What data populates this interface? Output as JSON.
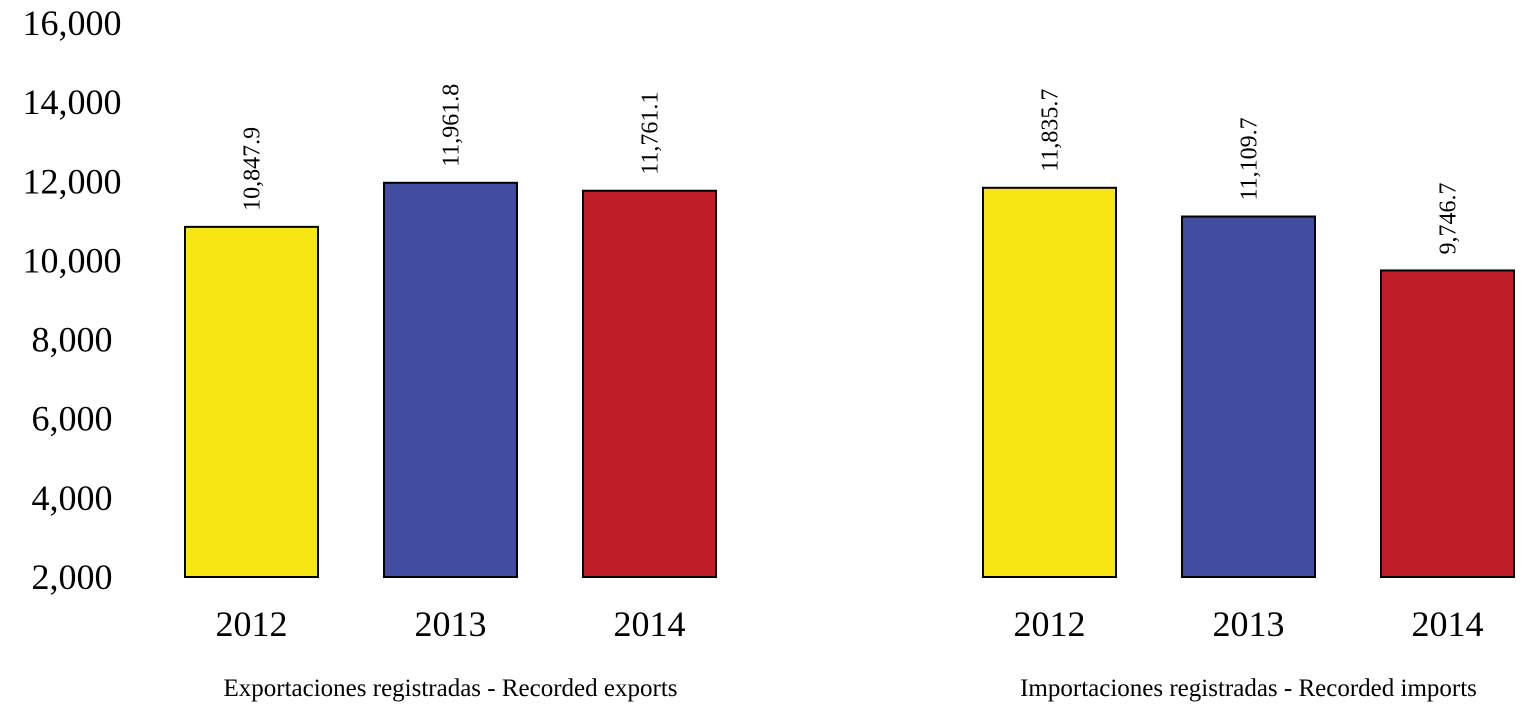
{
  "chart_data": {
    "type": "bar",
    "ylim": [
      2000,
      16000
    ],
    "yticks": [
      "2,000",
      "4,000",
      "6,000",
      "8,000",
      "10,000",
      "12,000",
      "14,000",
      "16,000"
    ],
    "ytick_values": [
      2000,
      4000,
      6000,
      8000,
      10000,
      12000,
      14000,
      16000
    ],
    "grid": false,
    "colors": {
      "2012": "#f5e614",
      "2013": "#434d9f",
      "2014": "#be1e28"
    },
    "groups": [
      {
        "title": "Exportaciones registradas - Recorded exports",
        "categories": [
          "2012",
          "2013",
          "2014"
        ],
        "values": [
          10847.9,
          11961.8,
          11761.1
        ],
        "value_labels": [
          "10,847.9",
          "11,961.8",
          "11,761.1"
        ]
      },
      {
        "title": "Importaciones registradas - Recorded imports",
        "categories": [
          "2012",
          "2013",
          "2014"
        ],
        "values": [
          11835.7,
          11109.7,
          9746.7
        ],
        "value_labels": [
          "11,835.7",
          "11,109.7",
          "9,746.7"
        ]
      }
    ]
  }
}
